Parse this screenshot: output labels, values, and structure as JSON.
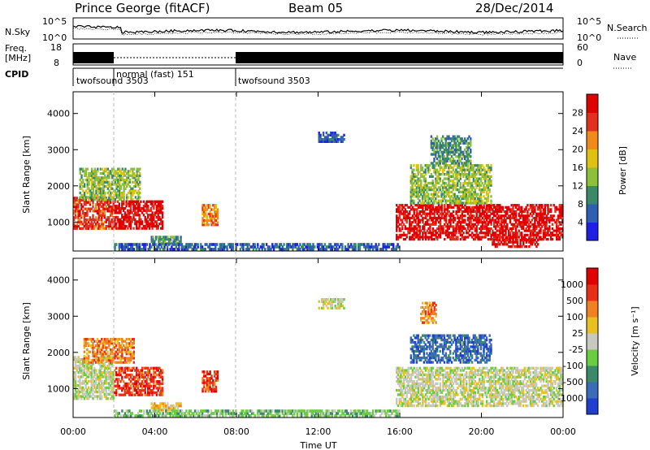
{
  "header": {
    "station": "Prince George (fitACF)",
    "beam": "Beam 05",
    "date": "28/Dec/2014"
  },
  "noise_panel": {
    "left_label": "N.Sky",
    "right_label": "N.Search",
    "left_ticks": [
      "10^5",
      "10^0"
    ],
    "right_ticks": [
      "10^5",
      "10^0"
    ]
  },
  "freq_panel": {
    "left_label_top": "Freq.",
    "left_label_bottom": "[MHz]",
    "right_label": "Nave",
    "left_ticks": [
      "18",
      "8"
    ],
    "right_ticks": [
      "60",
      "0"
    ]
  },
  "cpid_panel": {
    "label": "CPID",
    "segments": [
      {
        "start": 0.0,
        "end": 2.0,
        "name": "twofsound 3503"
      },
      {
        "start": 2.0,
        "end": 8.0,
        "name": "normal (fast) 151"
      },
      {
        "start": 8.0,
        "end": 24.0,
        "name": "twofsound 3503"
      }
    ]
  },
  "time_axis": {
    "label": "Time UT",
    "ticks": [
      "00:00",
      "04:00",
      "08:00",
      "12:00",
      "16:00",
      "20:00",
      "00:00"
    ]
  },
  "power_panel": {
    "ylabel": "Slant Range [km]",
    "yticks": [
      "1000",
      "2000",
      "3000",
      "4000"
    ],
    "colorbar_label": "Power [dB]",
    "colorbar_ticks": [
      "4",
      "8",
      "12",
      "16",
      "20",
      "24",
      "28"
    ],
    "colors": [
      "#1f1fe6",
      "#2f5fb0",
      "#3a8a6a",
      "#8cbf3a",
      "#e0c010",
      "#f08a1a",
      "#e03020",
      "#e00000"
    ]
  },
  "velocity_panel": {
    "ylabel": "Slant Range [km]",
    "yticks": [
      "1000",
      "2000",
      "3000",
      "4000"
    ],
    "colorbar_label": "Velocity [m s⁻¹]",
    "colorbar_ticks": [
      "1000",
      "500",
      "100",
      "25",
      "-25",
      "-100",
      "-500",
      "-1000"
    ],
    "colors": [
      "#1f3fd0",
      "#3a6ab8",
      "#3a8a6a",
      "#6acc40",
      "#c8c8c0",
      "#e8c020",
      "#f08020",
      "#e83018",
      "#e00000"
    ]
  },
  "chart_data": {
    "type": "heatmap",
    "title": "Prince George (fitACF)",
    "xlabel": "Time UT",
    "ylabel": "Slant Range [km]",
    "xlim": [
      0,
      24
    ],
    "ylim": [
      200,
      4600
    ],
    "power_regions": [
      {
        "t0": 0.0,
        "t1": 2.0,
        "r0": 800,
        "r1": 1700,
        "level": 6
      },
      {
        "t0": 0.3,
        "t1": 3.3,
        "r0": 1600,
        "r1": 2500,
        "level": 3
      },
      {
        "t0": 2.0,
        "t1": 4.4,
        "r0": 800,
        "r1": 1600,
        "level": 7
      },
      {
        "t0": 3.8,
        "t1": 5.3,
        "r0": 380,
        "r1": 620,
        "level": 2
      },
      {
        "t0": 6.3,
        "t1": 7.1,
        "r0": 900,
        "r1": 1500,
        "level": 5
      },
      {
        "t0": 12.0,
        "t1": 13.3,
        "r0": 3200,
        "r1": 3500,
        "level": 1
      },
      {
        "t0": 15.8,
        "t1": 24.0,
        "r0": 500,
        "r1": 1500,
        "level": 7
      },
      {
        "t0": 16.5,
        "t1": 20.5,
        "r0": 1500,
        "r1": 2600,
        "level": 3
      },
      {
        "t0": 17.5,
        "t1": 19.5,
        "r0": 2600,
        "r1": 3400,
        "level": 2
      },
      {
        "t0": 20.5,
        "t1": 22.8,
        "r0": 300,
        "r1": 600,
        "level": 7
      },
      {
        "t0": 2.0,
        "t1": 16.0,
        "r0": 220,
        "r1": 420,
        "level": 1
      }
    ],
    "velocity_regions": [
      {
        "t0": 0.0,
        "t1": 2.0,
        "r0": 700,
        "r1": 1900,
        "level": 4
      },
      {
        "t0": 0.5,
        "t1": 3.0,
        "r0": 1700,
        "r1": 2400,
        "level": 6
      },
      {
        "t0": 2.0,
        "t1": 4.4,
        "r0": 800,
        "r1": 1600,
        "level": 7
      },
      {
        "t0": 3.8,
        "t1": 5.3,
        "r0": 380,
        "r1": 620,
        "level": 5
      },
      {
        "t0": 6.3,
        "t1": 7.1,
        "r0": 900,
        "r1": 1500,
        "level": 7
      },
      {
        "t0": 12.0,
        "t1": 13.3,
        "r0": 3200,
        "r1": 3500,
        "level": 4
      },
      {
        "t0": 15.8,
        "t1": 24.0,
        "r0": 500,
        "r1": 1600,
        "level": 4
      },
      {
        "t0": 16.5,
        "t1": 20.5,
        "r0": 1700,
        "r1": 2500,
        "level": 1
      },
      {
        "t0": 17.0,
        "t1": 17.8,
        "r0": 2800,
        "r1": 3400,
        "level": 6
      },
      {
        "t0": 2.0,
        "t1": 16.0,
        "r0": 220,
        "r1": 420,
        "level": 3
      }
    ]
  }
}
